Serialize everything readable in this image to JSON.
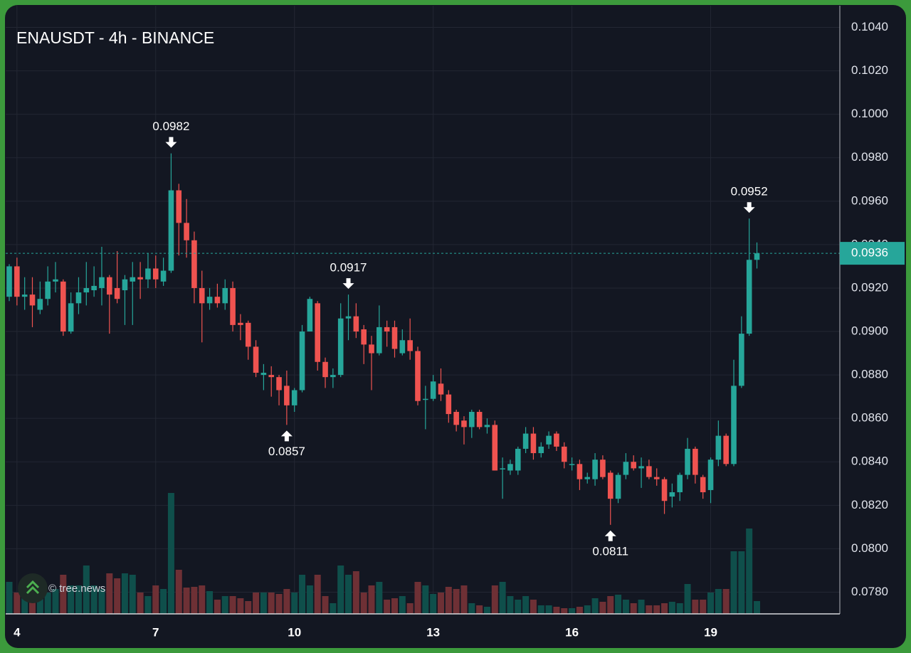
{
  "chart_data": {
    "type": "candlestick",
    "title": "ENAUSDT - 4h - BINANCE",
    "watermark": "© tree.news",
    "categories": [
      null,
      "4",
      null,
      null,
      null,
      null,
      null,
      null,
      null,
      null,
      null,
      null,
      null,
      null,
      null,
      null,
      null,
      null,
      null,
      "7",
      null,
      null,
      null,
      null,
      null,
      null,
      null,
      null,
      null,
      null,
      null,
      null,
      null,
      null,
      null,
      null,
      null,
      "10",
      null,
      null,
      null,
      null,
      null,
      null,
      null,
      null,
      null,
      null,
      null,
      null,
      null,
      null,
      null,
      null,
      null,
      "13",
      null,
      null,
      null,
      null,
      null,
      null,
      null,
      null,
      null,
      null,
      null,
      null,
      null,
      null,
      null,
      null,
      null,
      "16",
      null,
      null,
      null,
      null,
      null,
      null,
      null,
      null,
      null,
      null,
      null,
      null,
      null,
      null,
      null,
      null,
      null,
      "19",
      null,
      null,
      null,
      null,
      null,
      null
    ],
    "open": [
      0.0916,
      0.093,
      0.0916,
      0.0917,
      0.091,
      0.0915,
      0.0923,
      0.0923,
      0.09,
      0.0913,
      0.0918,
      0.0919,
      0.092,
      0.0925,
      0.092,
      0.0919,
      0.0923,
      0.0925,
      0.0924,
      0.0929,
      0.0923,
      0.0928,
      0.0965,
      0.095,
      0.0942,
      0.092,
      0.0913,
      0.0916,
      0.0913,
      0.092,
      0.0904,
      0.0904,
      0.0893,
      0.088,
      0.088,
      0.0879,
      0.0875,
      0.0866,
      0.0873,
      0.09,
      0.0913,
      0.0886,
      0.0879,
      0.088,
      0.0906,
      0.0907,
      0.0901,
      0.0894,
      0.089,
      0.0902,
      0.0902,
      0.089,
      0.0896,
      0.0891,
      0.0869,
      0.0869,
      0.0876,
      0.0871,
      0.0863,
      0.0859,
      0.0856,
      0.0863,
      0.0856,
      0.0857,
      0.0837,
      0.0836,
      0.0836,
      0.0846,
      0.0853,
      0.0844,
      0.0848,
      0.0853,
      0.0847,
      0.0839,
      0.0839,
      0.0832,
      0.0832,
      0.0841,
      0.0835,
      0.0823,
      0.0834,
      0.084,
      0.0837,
      0.0838,
      0.0833,
      0.0832,
      0.0824,
      0.0826,
      0.0834,
      0.0846,
      0.0833,
      0.0827,
      0.0841,
      0.0852,
      0.0839,
      0.0875,
      0.0899,
      0.0933
    ],
    "high": [
      0.0931,
      0.0934,
      0.0925,
      0.0925,
      0.0923,
      0.093,
      0.0932,
      0.0924,
      0.0918,
      0.0925,
      0.0932,
      0.093,
      0.0939,
      0.0926,
      0.0937,
      0.0926,
      0.0932,
      0.0932,
      0.0936,
      0.0935,
      0.0934,
      0.0982,
      0.0968,
      0.0961,
      0.0946,
      0.0928,
      0.092,
      0.0922,
      0.0924,
      0.0923,
      0.0908,
      0.0905,
      0.0896,
      0.0885,
      0.0884,
      0.088,
      0.0882,
      0.0874,
      0.0903,
      0.0916,
      0.0914,
      0.0888,
      0.0883,
      0.0913,
      0.0917,
      0.0913,
      0.0903,
      0.0898,
      0.0912,
      0.0905,
      0.0905,
      0.0901,
      0.0906,
      0.0893,
      0.0875,
      0.088,
      0.0883,
      0.0873,
      0.0864,
      0.0861,
      0.0864,
      0.0864,
      0.086,
      0.0859,
      0.0842,
      0.0841,
      0.0847,
      0.0856,
      0.0856,
      0.0849,
      0.0854,
      0.0854,
      0.0849,
      0.0842,
      0.0841,
      0.0835,
      0.0844,
      0.0843,
      0.0836,
      0.0835,
      0.0844,
      0.0843,
      0.0842,
      0.0841,
      0.0837,
      0.0833,
      0.083,
      0.0835,
      0.0851,
      0.0847,
      0.0834,
      0.0842,
      0.0859,
      0.0853,
      0.0887,
      0.0907,
      0.0952,
      0.0941
    ],
    "low": [
      0.0914,
      0.0912,
      0.091,
      0.0902,
      0.0908,
      0.0912,
      0.0918,
      0.0898,
      0.0899,
      0.0908,
      0.0912,
      0.0916,
      0.0912,
      0.0899,
      0.0913,
      0.0903,
      0.0903,
      0.0915,
      0.092,
      0.092,
      0.0921,
      0.0927,
      0.0935,
      0.0934,
      0.0913,
      0.0895,
      0.091,
      0.0911,
      0.091,
      0.09,
      0.0896,
      0.0887,
      0.0879,
      0.0873,
      0.087,
      0.0866,
      0.0857,
      0.0863,
      0.0872,
      0.09,
      0.0882,
      0.0874,
      0.0874,
      0.0879,
      0.0896,
      0.0897,
      0.0885,
      0.0873,
      0.0889,
      0.0893,
      0.0888,
      0.0889,
      0.0887,
      0.0866,
      0.0855,
      0.0868,
      0.0868,
      0.0858,
      0.0854,
      0.0848,
      0.0851,
      0.0855,
      0.0853,
      0.0836,
      0.0823,
      0.0834,
      0.0834,
      0.0844,
      0.0841,
      0.0842,
      0.0846,
      0.0845,
      0.0837,
      0.0836,
      0.0827,
      0.083,
      0.0829,
      0.0832,
      0.0811,
      0.0821,
      0.0832,
      0.0836,
      0.0828,
      0.0832,
      0.0829,
      0.0816,
      0.0819,
      0.0822,
      0.0832,
      0.083,
      0.0823,
      0.0821,
      0.0838,
      0.0838,
      0.0838,
      0.0874,
      0.0898,
      0.0929
    ],
    "close": [
      0.093,
      0.0916,
      0.0917,
      0.0912,
      0.0915,
      0.0923,
      0.0924,
      0.09,
      0.0913,
      0.0918,
      0.092,
      0.0921,
      0.0925,
      0.0917,
      0.0915,
      0.0924,
      0.0925,
      0.0924,
      0.0929,
      0.0924,
      0.0928,
      0.0965,
      0.095,
      0.0942,
      0.092,
      0.0913,
      0.0916,
      0.0913,
      0.092,
      0.0903,
      0.0903,
      0.0893,
      0.0881,
      0.0881,
      0.0879,
      0.0873,
      0.0866,
      0.0873,
      0.09,
      0.0915,
      0.0886,
      0.0879,
      0.088,
      0.0906,
      0.0907,
      0.09,
      0.0894,
      0.089,
      0.0902,
      0.09,
      0.0892,
      0.0896,
      0.0891,
      0.0868,
      0.0869,
      0.0877,
      0.0871,
      0.0862,
      0.0857,
      0.0856,
      0.0863,
      0.0856,
      0.0857,
      0.0836,
      0.0837,
      0.0839,
      0.0846,
      0.0853,
      0.0844,
      0.0847,
      0.0852,
      0.0847,
      0.084,
      0.0839,
      0.0832,
      0.0833,
      0.0841,
      0.0833,
      0.0823,
      0.0834,
      0.084,
      0.0837,
      0.0838,
      0.0833,
      0.0832,
      0.0822,
      0.0826,
      0.0834,
      0.0846,
      0.0834,
      0.0826,
      0.0841,
      0.0852,
      0.0839,
      0.0875,
      0.0899,
      0.0933,
      0.0936
    ],
    "volume": [
      45,
      30,
      25,
      30,
      40,
      30,
      35,
      55,
      40,
      40,
      68,
      40,
      35,
      57,
      50,
      57,
      55,
      30,
      25,
      40,
      35,
      170,
      62,
      37,
      38,
      40,
      32,
      20,
      25,
      25,
      22,
      18,
      30,
      30,
      30,
      28,
      35,
      30,
      55,
      40,
      55,
      25,
      15,
      68,
      55,
      60,
      30,
      40,
      45,
      20,
      22,
      25,
      15,
      45,
      40,
      28,
      30,
      38,
      35,
      40,
      15,
      12,
      10,
      40,
      45,
      25,
      20,
      25,
      20,
      12,
      12,
      10,
      8,
      8,
      10,
      12,
      22,
      17,
      25,
      27,
      20,
      15,
      20,
      12,
      12,
      15,
      17,
      15,
      42,
      20,
      20,
      30,
      35,
      35,
      88,
      88,
      120,
      18
    ],
    "up_color": "#26a69a",
    "down_color": "#ef5350",
    "up_volume_color": "#0f4f4b",
    "down_volume_color": "#6e3035",
    "ylim": [
      0.077,
      0.105
    ],
    "yticks": [
      {
        "value": 0.078,
        "label": "0.0780"
      },
      {
        "value": 0.08,
        "label": "0.0800"
      },
      {
        "value": 0.082,
        "label": "0.0820"
      },
      {
        "value": 0.084,
        "label": "0.0840"
      },
      {
        "value": 0.086,
        "label": "0.0860"
      },
      {
        "value": 0.088,
        "label": "0.0880"
      },
      {
        "value": 0.09,
        "label": "0.0900"
      },
      {
        "value": 0.092,
        "label": "0.0920"
      },
      {
        "value": 0.094,
        "label": "0.0940"
      },
      {
        "value": 0.096,
        "label": "0.0960"
      },
      {
        "value": 0.098,
        "label": "0.0980"
      },
      {
        "value": 0.1,
        "label": "0.1000"
      },
      {
        "value": 0.102,
        "label": "0.1020"
      },
      {
        "value": 0.104,
        "label": "0.1040"
      }
    ],
    "last_price": 0.0936,
    "annotations": [
      0.0982,
      0.0857,
      0.0917,
      0.0811,
      0.0952
    ],
    "grid": true
  }
}
